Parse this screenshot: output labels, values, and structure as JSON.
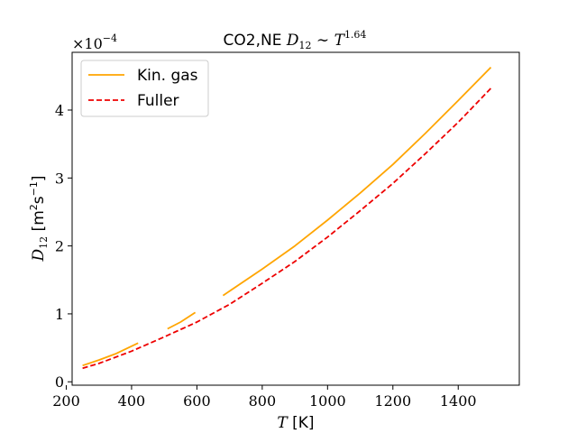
{
  "chart_data": {
    "type": "line",
    "title": {
      "prefix": "CO2,NE ",
      "d": "D",
      "d_sub": "12",
      "sim": " ∼ ",
      "t": "T",
      "t_sup": "1.64"
    },
    "xlabel": {
      "var": "T",
      "unit": " [K]"
    },
    "ylabel": {
      "var": "D",
      "sub": "12",
      "unit_open": " [m",
      "unit_sup1": "2",
      "unit_mid": "s",
      "unit_sup2": "−1",
      "unit_close": "]"
    },
    "offset_text": {
      "base": "×10",
      "exp": "−4"
    },
    "xlim": [
      218,
      1587
    ],
    "ylim": [
      -0.05,
      4.85
    ],
    "xticks": [
      200,
      400,
      600,
      800,
      1000,
      1200,
      1400
    ],
    "xtick_labels": [
      "200",
      "400",
      "600",
      "800",
      "1000",
      "1200",
      "1400"
    ],
    "yticks": [
      0,
      1,
      2,
      3,
      4
    ],
    "ytick_labels": [
      "0",
      "1",
      "2",
      "3",
      "4"
    ],
    "legend_position": "top-left",
    "series": [
      {
        "name": "Kin. gas",
        "color": "#ffa500",
        "style": "solid",
        "segments": [
          {
            "x": [
              250,
              300,
              350,
              420
            ],
            "y": [
              0.24,
              0.32,
              0.41,
              0.57
            ]
          },
          {
            "x": [
              510,
              550,
              595
            ],
            "y": [
              0.78,
              0.88,
              1.02
            ]
          },
          {
            "x": [
              680,
              800,
              900,
              1000,
              1100,
              1200,
              1300,
              1400,
              1500
            ],
            "y": [
              1.27,
              1.66,
              2.0,
              2.38,
              2.78,
              3.2,
              3.66,
              4.14,
              4.63
            ]
          }
        ]
      },
      {
        "name": "Fuller",
        "color": "#ee0000",
        "style": "dashed",
        "segments": [
          {
            "x": [
              250,
              300,
              400,
              500,
              600,
              700,
              800,
              900,
              1000,
              1100,
              1200,
              1300,
              1400,
              1500
            ],
            "y": [
              0.2,
              0.27,
              0.45,
              0.66,
              0.88,
              1.14,
              1.45,
              1.77,
              2.13,
              2.52,
              2.92,
              3.36,
              3.82,
              4.32
            ]
          }
        ]
      }
    ]
  }
}
